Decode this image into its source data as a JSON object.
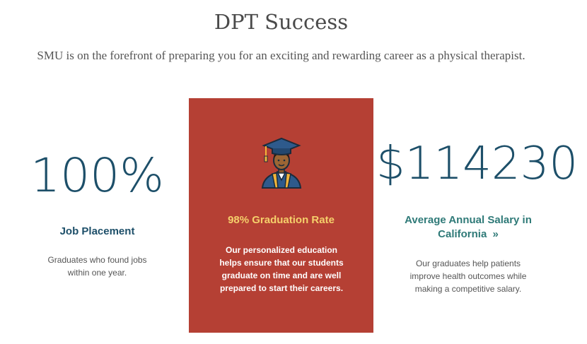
{
  "header": {
    "title": "DPT Success",
    "subtitle": "SMU is on the forefront of preparing you for an exciting and rewarding career as a physical therapist."
  },
  "stats": [
    {
      "value": "100%",
      "label": "Job Placement",
      "description": "Graduates who found jobs within one year."
    },
    {
      "icon": "graduate-icon",
      "label": "98% Graduation Rate",
      "description": "Our personalized education helps ensure that our students graduate on time and are well prepared to start their careers."
    },
    {
      "value": "$114230",
      "label": "Average Annual Salary in California",
      "link_arrow": "»",
      "description": "Our graduates help patients improve health outcomes while making a competitive salary."
    }
  ],
  "colors": {
    "accent_blue": "#1d4f69",
    "link_teal": "#2f7a78",
    "card_red": "#b54034",
    "card_label_yellow": "#f5d06b"
  }
}
